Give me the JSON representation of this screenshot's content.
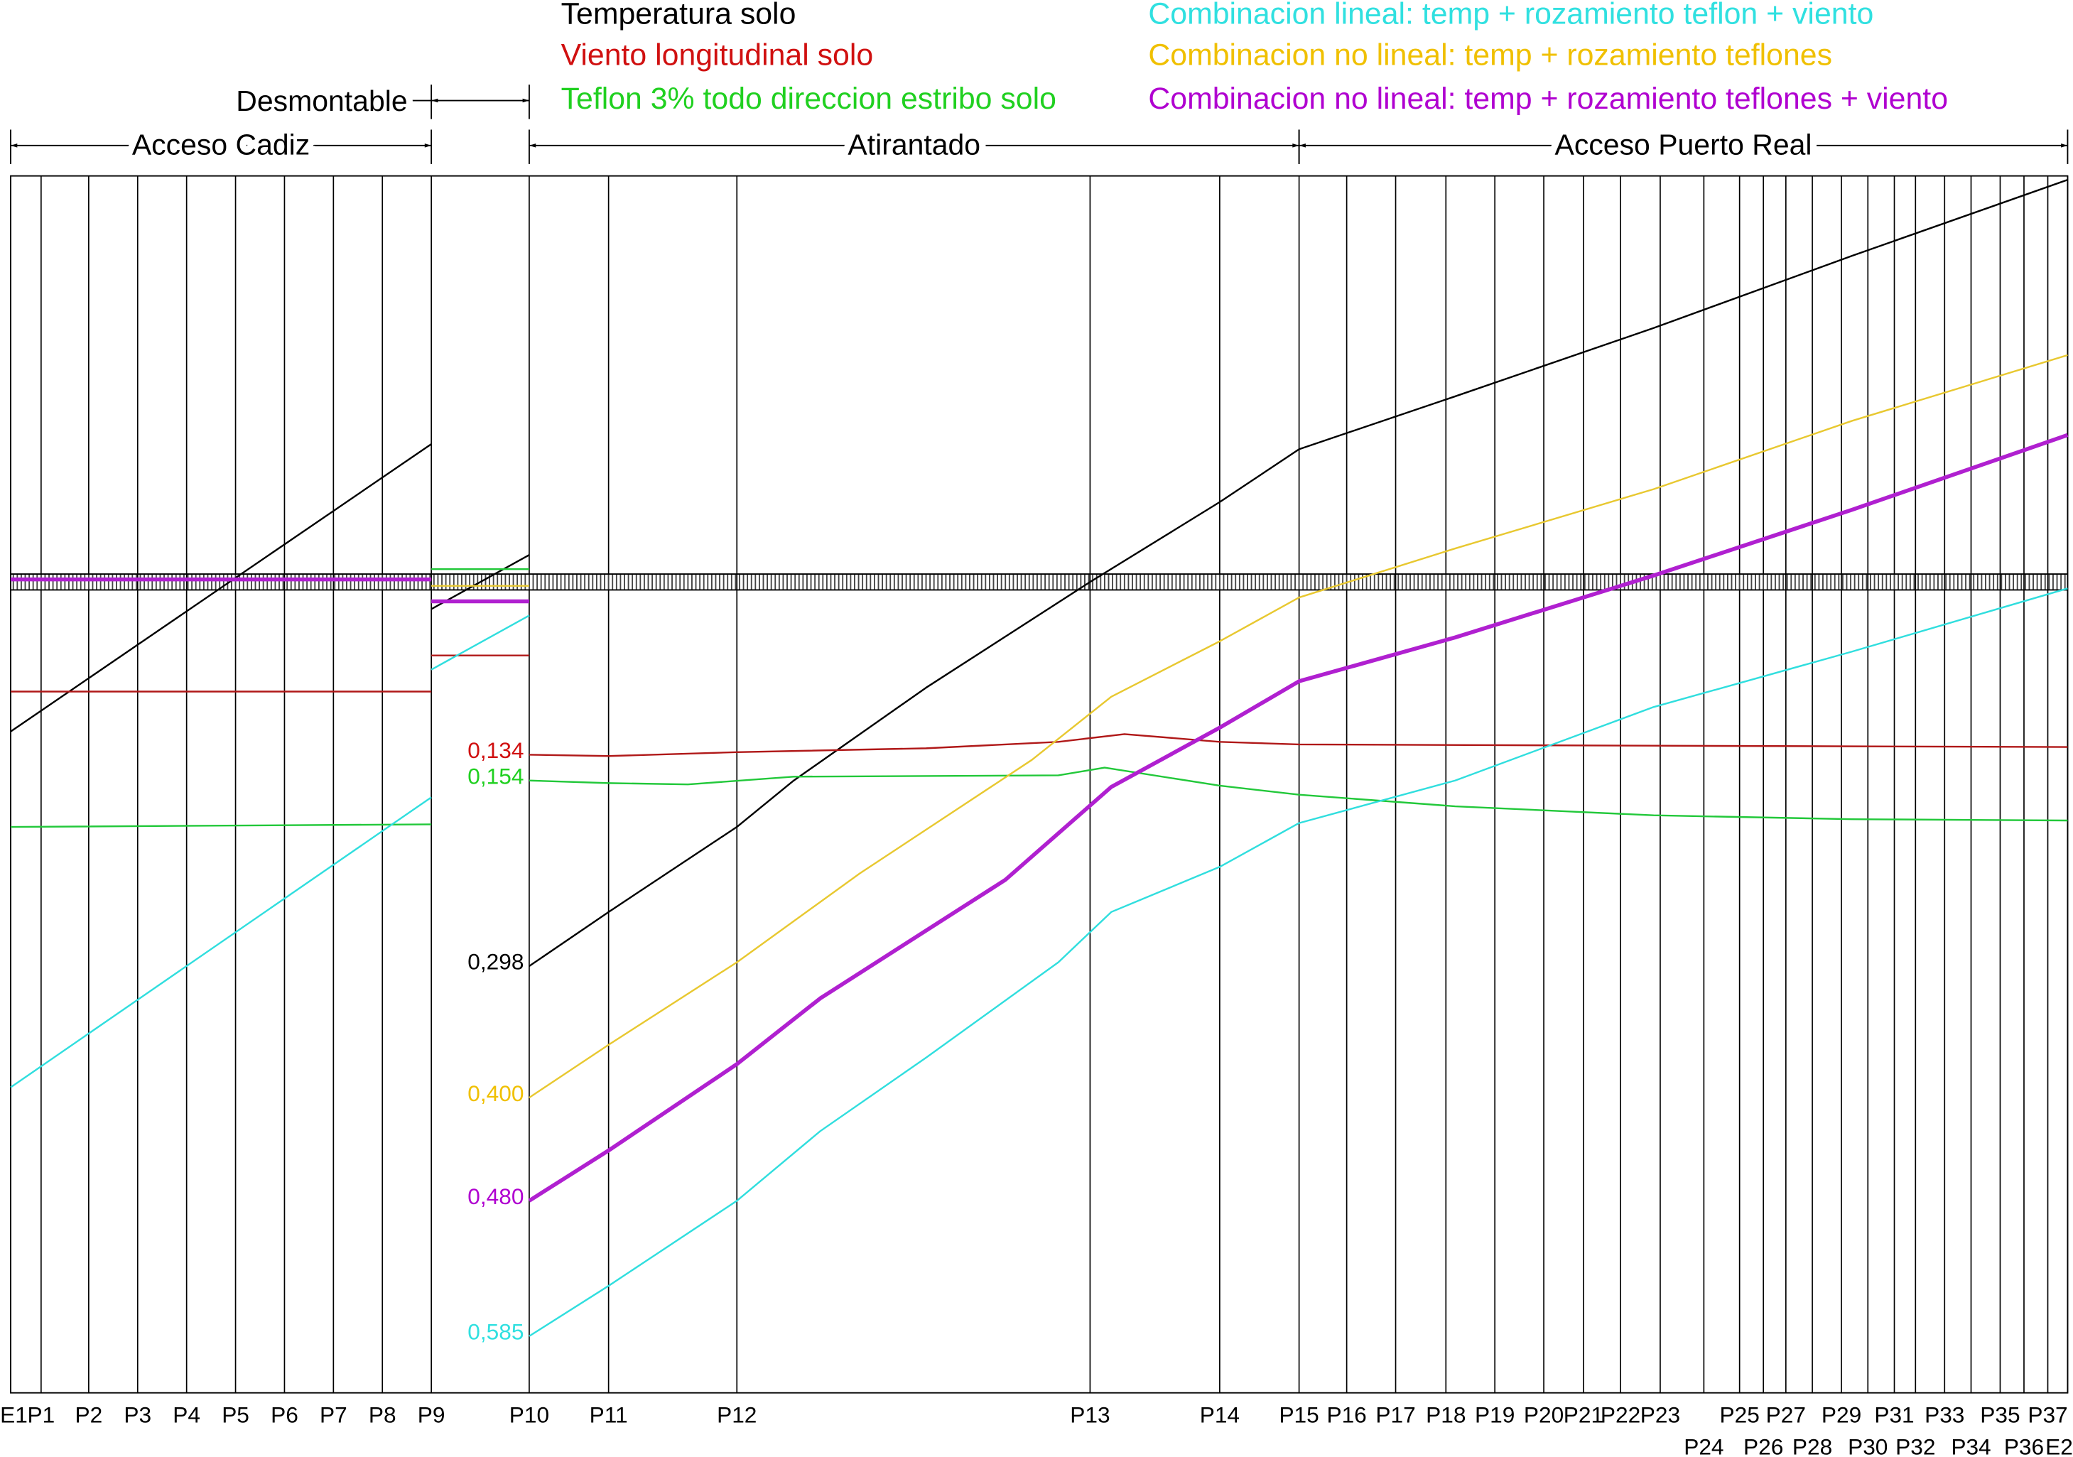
{
  "chart_data": {
    "type": "line",
    "xlim": [
      8,
      1563
    ],
    "ylim": [
      0.629,
      -0.315
    ],
    "xticks": [
      {
        "value": 8,
        "label": "E1"
      },
      {
        "value": 31,
        "label": "P1"
      },
      {
        "value": 67,
        "label": "P2"
      },
      {
        "value": 104,
        "label": "P3"
      },
      {
        "value": 141,
        "label": "P4"
      },
      {
        "value": 178,
        "label": "P5"
      },
      {
        "value": 215,
        "label": "P6"
      },
      {
        "value": 252,
        "label": "P7"
      },
      {
        "value": 289,
        "label": "P8"
      },
      {
        "value": 326,
        "label": "P9"
      },
      {
        "value": 400,
        "label": "P10"
      },
      {
        "value": 460,
        "label": "P11"
      },
      {
        "value": 557,
        "label": "P12"
      },
      {
        "value": 824,
        "label": "P13"
      },
      {
        "value": 922,
        "label": "P14"
      },
      {
        "value": 982,
        "label": "P15"
      },
      {
        "value": 1018,
        "label": "P16"
      },
      {
        "value": 1055,
        "label": "P17"
      },
      {
        "value": 1093,
        "label": "P18"
      },
      {
        "value": 1130,
        "label": "P19"
      },
      {
        "value": 1167,
        "label": "P20"
      },
      {
        "value": 1197,
        "label": "P21"
      },
      {
        "value": 1225,
        "label": "P22"
      },
      {
        "value": 1255,
        "label": "P23"
      },
      {
        "value": 1288,
        "label": "P24"
      },
      {
        "value": 1315,
        "label": "P25"
      },
      {
        "value": 1333,
        "label": "P26"
      },
      {
        "value": 1350,
        "label": "P27"
      },
      {
        "value": 1370,
        "label": "P28"
      },
      {
        "value": 1392,
        "label": "P29"
      },
      {
        "value": 1412,
        "label": "P30"
      },
      {
        "value": 1432,
        "label": "P31"
      },
      {
        "value": 1448,
        "label": "P32"
      },
      {
        "value": 1470,
        "label": "P33"
      },
      {
        "value": 1490,
        "label": "P34"
      },
      {
        "value": 1512,
        "label": "P35"
      },
      {
        "value": 1530,
        "label": "P36"
      },
      {
        "value": 1548,
        "label": "P37"
      },
      {
        "value": 1563,
        "label": "E2"
      }
    ],
    "sections": [
      {
        "label": "Acceso Cadiz",
        "start": 8,
        "end": 326
      },
      {
        "label": "Desmontable",
        "start": 326,
        "end": 400
      },
      {
        "label": "Atirantado",
        "start": 400,
        "end": 982
      },
      {
        "label": "Acceso Puerto Real",
        "start": 982,
        "end": 1563
      }
    ],
    "series": [
      {
        "name": "Temperatura solo",
        "color": "#000000",
        "legend_color": "#000000",
        "x": [
          8,
          326,
          null,
          326,
          400,
          null,
          400,
          460,
          557,
          600,
          700,
          824,
          922,
          982,
          1100,
          1250,
          1400,
          1563
        ],
        "values": [
          0.116,
          -0.107,
          null,
          0.021,
          -0.021,
          null,
          0.298,
          0.256,
          0.19,
          0.154,
          0.082,
          0.0,
          -0.062,
          -0.103,
          -0.144,
          -0.197,
          -0.253,
          -0.312
        ],
        "value_labels": [
          null,
          null,
          null,
          null,
          null,
          null,
          "0,298",
          null,
          null,
          null,
          null,
          null,
          null,
          null,
          null,
          null,
          null,
          null
        ]
      },
      {
        "name": "Viento longitudinal solo",
        "color": "#b01818",
        "legend_color": "#d01010",
        "x": [
          8,
          326,
          null,
          326,
          400,
          null,
          400,
          460,
          557,
          700,
          800,
          850,
          922,
          982,
          1250,
          1563
        ],
        "values": [
          0.085,
          0.085,
          null,
          0.057,
          0.057,
          null,
          0.134,
          0.135,
          0.132,
          0.129,
          0.124,
          0.118,
          0.124,
          0.126,
          0.127,
          0.128
        ],
        "value_labels": [
          null,
          null,
          null,
          null,
          null,
          null,
          "0,134",
          null,
          null,
          null,
          null,
          null,
          null,
          null,
          null,
          null
        ]
      },
      {
        "name": "Teflon 3% todo direccion estribo solo",
        "color": "#22c83a",
        "legend_color": "#20d020",
        "x": [
          8,
          326,
          null,
          326,
          400,
          null,
          400,
          460,
          520,
          600,
          800,
          835,
          922,
          982,
          1100,
          1250,
          1400,
          1563
        ],
        "values": [
          0.19,
          0.188,
          null,
          -0.01,
          -0.01,
          null,
          0.154,
          0.156,
          0.157,
          0.151,
          0.15,
          0.144,
          0.158,
          0.165,
          0.174,
          0.181,
          0.184,
          0.185
        ],
        "value_labels": [
          null,
          null,
          null,
          null,
          null,
          null,
          "0,154",
          null,
          null,
          null,
          null,
          null,
          null,
          null,
          null,
          null,
          null,
          null
        ]
      },
      {
        "name": "Combinacion lineal: temp + rozamiento teflon + viento",
        "color": "#30dede",
        "legend_color": "#30e0e0",
        "x": [
          8,
          326,
          null,
          326,
          400,
          null,
          400,
          460,
          557,
          620,
          700,
          800,
          840,
          922,
          982,
          1100,
          1250,
          1400,
          1563
        ],
        "values": [
          0.392,
          0.167,
          null,
          0.068,
          0.026,
          null,
          0.585,
          0.546,
          0.48,
          0.426,
          0.369,
          0.295,
          0.256,
          0.221,
          0.187,
          0.154,
          0.097,
          0.054,
          0.005
        ],
        "value_labels": [
          null,
          null,
          null,
          null,
          null,
          null,
          "0,585",
          null,
          null,
          null,
          null,
          null,
          null,
          null,
          null,
          null,
          null,
          null,
          null
        ]
      },
      {
        "name": "Combinacion no lineal: temp + rozamiento teflones",
        "color": "#e8c830",
        "legend_color": "#f0c000",
        "x": [
          8,
          326,
          null,
          326,
          400,
          null,
          400,
          460,
          557,
          650,
          780,
          840,
          922,
          982,
          1100,
          1250,
          1400,
          1563
        ],
        "values": [
          -0.002,
          -0.002,
          null,
          0.003,
          0.003,
          null,
          0.4,
          0.359,
          0.295,
          0.226,
          0.138,
          0.089,
          0.046,
          0.012,
          -0.026,
          -0.072,
          -0.125,
          -0.176
        ],
        "value_labels": [
          null,
          null,
          null,
          null,
          null,
          null,
          "0,400",
          null,
          null,
          null,
          null,
          null,
          null,
          null,
          null,
          null,
          null,
          null
        ]
      },
      {
        "name": "Combinacion no lineal: temp + rozamiento teflones + viento",
        "color": "#b020d0",
        "legend_color": "#b000d0",
        "x": [
          8,
          326,
          null,
          326,
          400,
          null,
          400,
          460,
          557,
          620,
          760,
          840,
          922,
          982,
          1100,
          1250,
          1400,
          1563
        ],
        "values": [
          -0.002,
          -0.002,
          null,
          0.015,
          0.015,
          null,
          0.48,
          0.441,
          0.374,
          0.323,
          0.231,
          0.159,
          0.113,
          0.077,
          0.043,
          -0.005,
          -0.056,
          -0.114
        ],
        "value_labels": [
          null,
          null,
          null,
          null,
          null,
          null,
          "0,480",
          null,
          null,
          null,
          null,
          null,
          null,
          null,
          null,
          null,
          null,
          null
        ]
      }
    ]
  }
}
